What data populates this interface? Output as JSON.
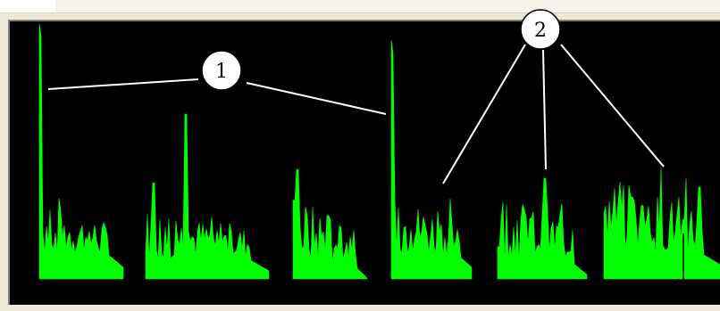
{
  "app": {
    "background_color": "#ece9d8",
    "display_color": "#000000",
    "signal_color": "#00ff00",
    "annotation_line_color": "#ffffff"
  },
  "callouts": [
    {
      "label": "1"
    },
    {
      "label": "2"
    }
  ]
}
